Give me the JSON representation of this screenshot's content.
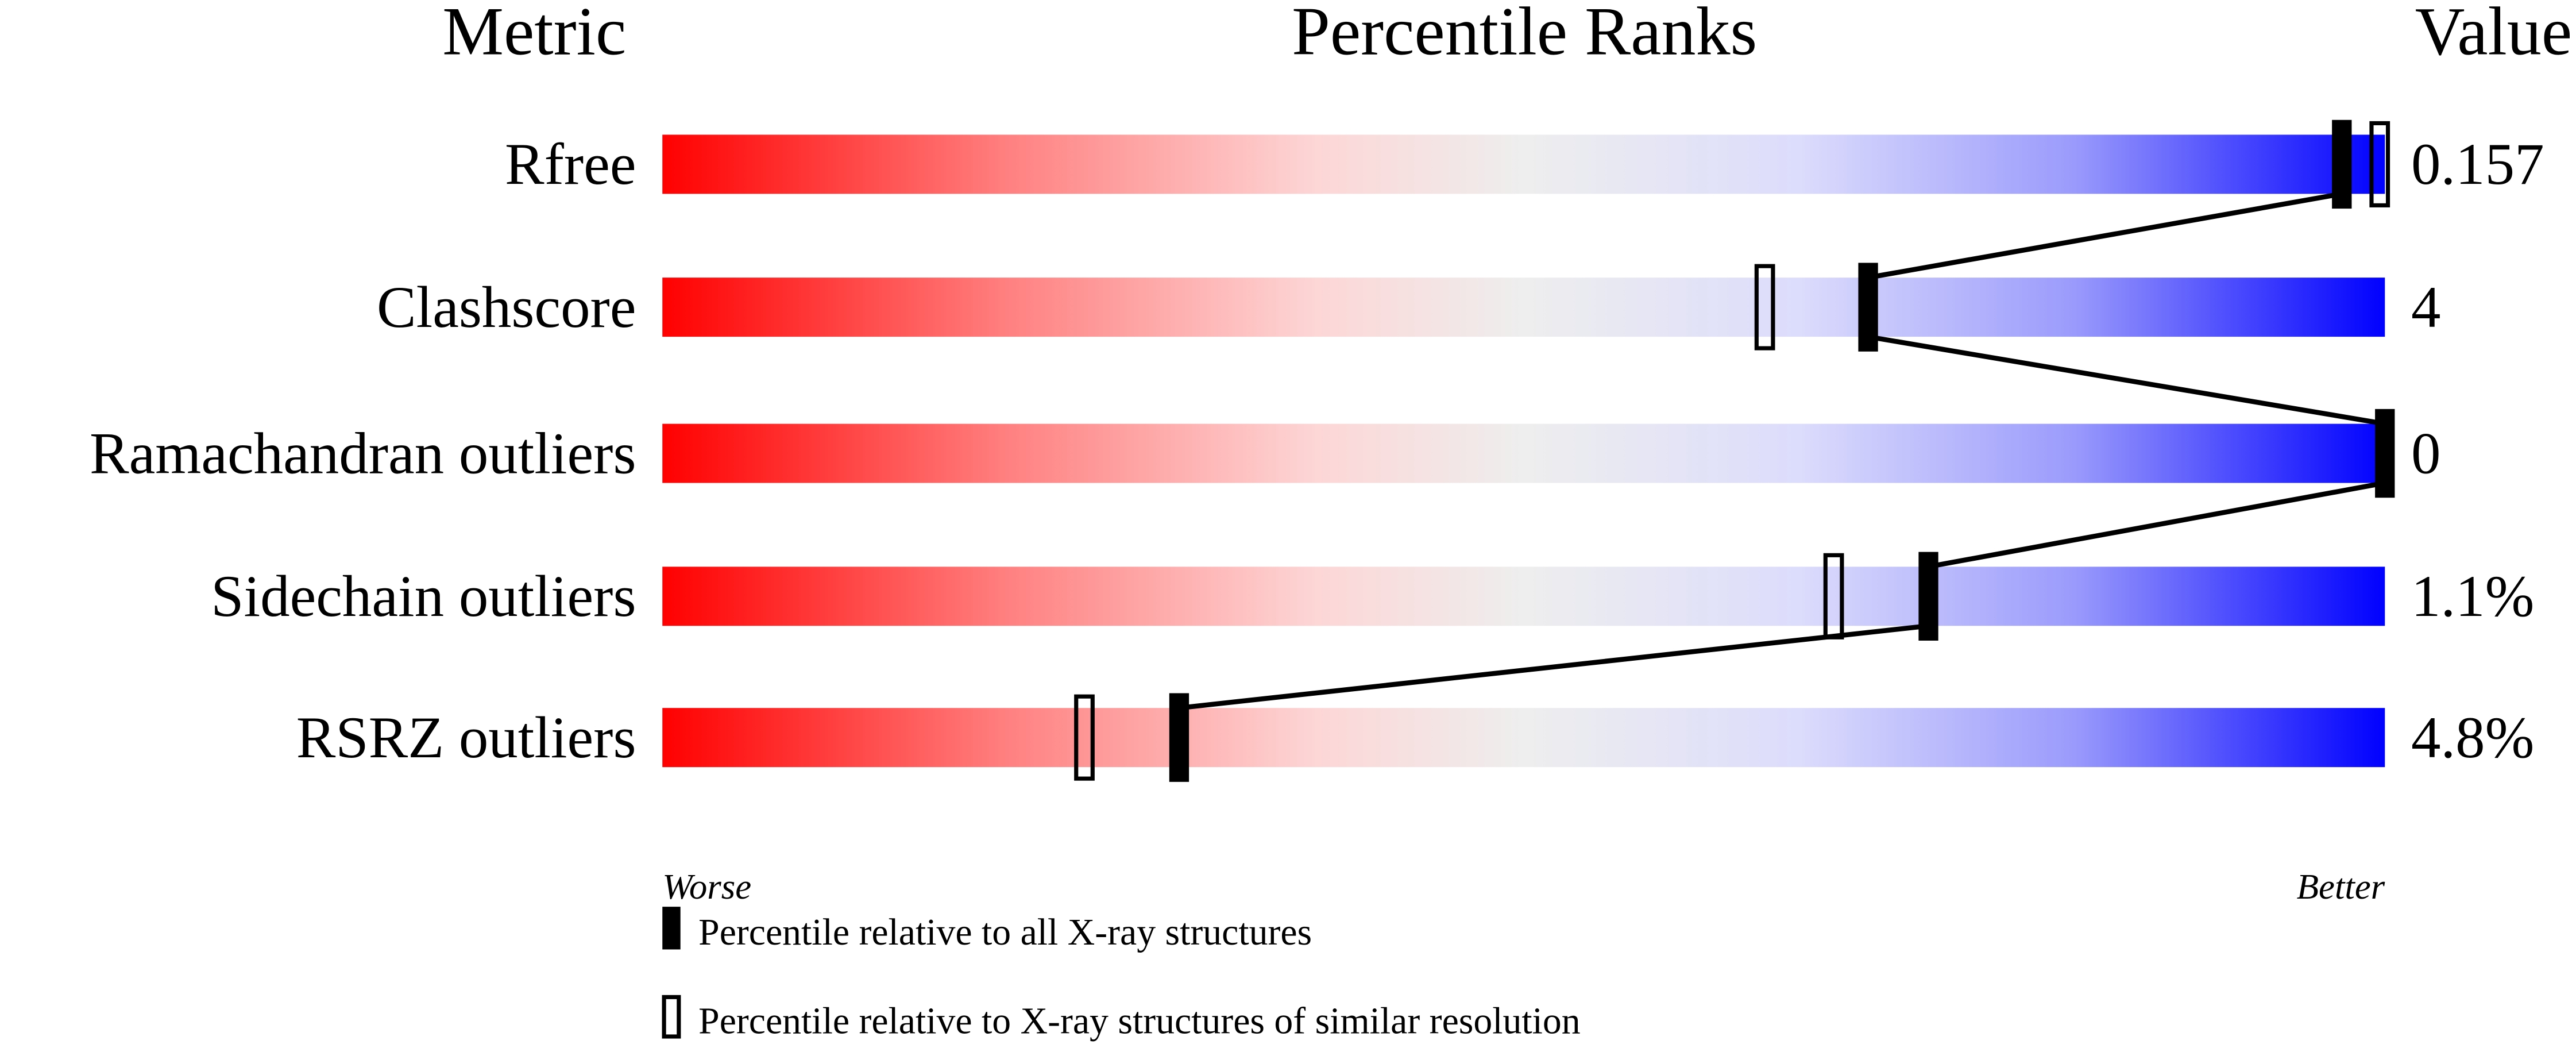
{
  "chart_data": {
    "type": "bar",
    "headers": {
      "metric": "Metric",
      "percentile": "Percentile Ranks",
      "value": "Value"
    },
    "xlim": [
      0,
      100
    ],
    "metrics": [
      {
        "name": "Rfree",
        "value": "0.157",
        "percentile_all": 97.5,
        "percentile_similar": 99.7
      },
      {
        "name": "Clashscore",
        "value": "4",
        "percentile_all": 70,
        "percentile_similar": 64
      },
      {
        "name": "Ramachandran outliers",
        "value": "0",
        "percentile_all": 100,
        "percentile_similar": null
      },
      {
        "name": "Sidechain outliers",
        "value": "1.1%",
        "percentile_all": 73.5,
        "percentile_similar": 68
      },
      {
        "name": "RSRZ outliers",
        "value": "4.8%",
        "percentile_all": 30,
        "percentile_similar": 24.5
      }
    ],
    "scale_labels": {
      "worse": "Worse",
      "better": "Better"
    },
    "legend": [
      {
        "marker": "filled",
        "label": "Percentile relative to all X-ray structures"
      },
      {
        "marker": "open",
        "label": "Percentile relative to X-ray structures of similar resolution"
      }
    ],
    "colors": {
      "worse": "#ff0000",
      "middle": "#eeeeee",
      "better": "#0000ff",
      "marker": "#000000"
    }
  }
}
